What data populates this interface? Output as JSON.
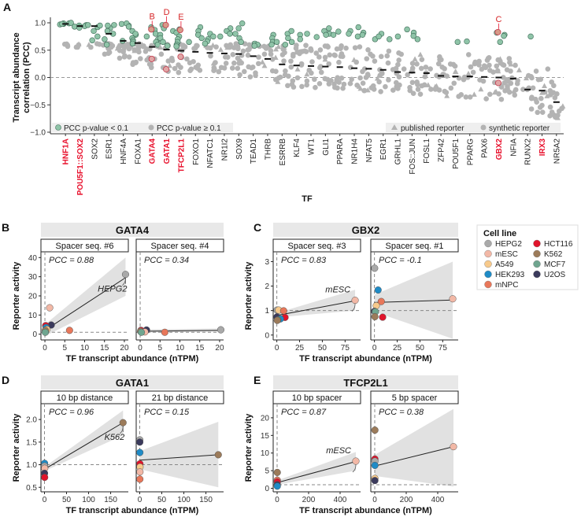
{
  "figure": {
    "panels": [
      "A",
      "B",
      "C",
      "D",
      "E"
    ]
  },
  "colors": {
    "significant": "#8fc4a8",
    "nonsignificant": "#b3b3b3",
    "highlight_label": "#e8112d",
    "highlight_point": "#e08a8a",
    "strip_bg": "#e8e8e8",
    "ribbon": "#dcdcdc"
  },
  "cell_lines": [
    {
      "name": "HEPG2",
      "color": "#a9a9a9"
    },
    {
      "name": "mESC",
      "color": "#f2b8a6"
    },
    {
      "name": "A549",
      "color": "#f7c98b"
    },
    {
      "name": "HEK293",
      "color": "#1f8bc6"
    },
    {
      "name": "mNPC",
      "color": "#e8775a"
    },
    {
      "name": "HCT116",
      "color": "#e0142b"
    },
    {
      "name": "K562",
      "color": "#9c7b5a"
    },
    {
      "name": "MCF7",
      "color": "#6fa58f"
    },
    {
      "name": "U2OS",
      "color": "#3b3a5c"
    }
  ],
  "chart_data": [
    {
      "panel": "A",
      "type": "scatter",
      "subtype": "strip/beeswarm with median markers",
      "title": "",
      "xlabel": "TF",
      "ylabel": "Transcript abundance correlation (PCC)",
      "ylim": [
        -1.0,
        1.0
      ],
      "yticks": [
        "1.0",
        "0.5",
        "0.0",
        "-0.5",
        "-1.0"
      ],
      "reference_line": 0.0,
      "legend": {
        "left": [
          {
            "label": "PCC p-value  <  0.1",
            "shape": "circle",
            "color": "#8fc4a8"
          },
          {
            "label": "PCC p-value ≥ 0.1",
            "shape": "circle",
            "color": "#b3b3b3"
          }
        ],
        "right": [
          {
            "label": "published reporter",
            "shape": "triangle"
          },
          {
            "label": "synthetic reporter",
            "shape": "circle"
          }
        ],
        "placement": "bottom"
      },
      "categories": [
        "HNF1A",
        "POU5F1::SOX2",
        "SOX2",
        "ESR1",
        "HNF4A",
        "FOXA1",
        "GATA4",
        "GATA1",
        "TFCP2L1",
        "FOXO1",
        "NFATC1",
        "NR1I2",
        "SOX9",
        "TEAD1",
        "THRB",
        "ESRRB",
        "KLF4",
        "WT1",
        "GLI1",
        "PPARA",
        "NR1H4",
        "NFAT5",
        "EGR1",
        "GRHL1",
        "FOS::JUN",
        "FOSL1",
        "ZFP42",
        "POU5F1",
        "PPARG",
        "PAX6",
        "GBX2",
        "NFIA",
        "RUNX2",
        "IRX3",
        "NR5A2"
      ],
      "highlighted_categories": [
        "HNF1A",
        "POU5F1::SOX2",
        "GATA4",
        "GATA1",
        "TFCP2L1",
        "GBX2",
        "IRX3"
      ],
      "medians": [
        0.98,
        0.94,
        0.94,
        0.8,
        0.67,
        0.63,
        0.56,
        0.51,
        0.49,
        0.47,
        0.45,
        0.44,
        0.43,
        0.39,
        0.34,
        0.24,
        0.22,
        0.21,
        0.2,
        0.19,
        0.17,
        0.16,
        0.14,
        0.1,
        0.09,
        0.08,
        0.03,
        0.02,
        0.02,
        0.01,
        0.0,
        -0.02,
        -0.22,
        -0.24,
        -0.45
      ],
      "sig_points": [
        [
          0.99,
          0.98,
          0.99,
          0.97,
          1.0,
          0.98
        ],
        [
          0.95,
          0.93,
          0.96,
          0.91,
          0.94
        ],
        [
          0.96,
          0.92,
          0.85,
          0.75,
          0.68,
          0.95
        ],
        [
          0.96,
          0.9,
          0.85,
          0.8,
          0.7,
          0.6,
          0.95
        ],
        [
          0.98,
          0.95,
          0.99,
          0.93,
          0.67
        ],
        [
          0.85,
          0.78,
          0.72,
          0.68,
          0.65,
          0.8,
          0.62
        ],
        [
          0.92,
          0.87,
          0.8,
          0.75,
          0.7,
          0.65,
          0.6
        ],
        [
          0.96,
          0.9,
          0.85,
          0.78,
          0.72,
          0.65,
          0.58
        ],
        [
          0.88,
          0.82,
          0.75,
          0.7,
          0.65,
          0.6,
          0.57
        ],
        [
          0.92,
          0.85,
          0.78,
          0.72,
          0.65
        ],
        [
          0.8,
          0.75,
          0.7,
          0.66,
          0.62
        ],
        [
          0.9,
          0.85,
          0.8,
          0.75
        ],
        [
          0.99,
          0.9,
          0.8,
          0.72,
          0.65
        ],
        [
          0.62,
          0.6,
          0.58
        ],
        [
          0.78,
          0.72,
          0.65,
          0.6
        ],
        [
          0.8,
          0.72,
          0.65,
          0.6
        ],
        [
          0.85,
          0.78,
          0.7,
          0.65
        ],
        [
          0.8,
          0.74
        ],
        [
          0.9,
          0.85,
          0.8,
          0.78
        ],
        [
          0.84,
          0.78
        ],
        [
          0.92,
          0.85,
          0.8,
          0.75
        ],
        [
          0.82,
          0.78,
          0.7
        ],
        [
          0.8,
          0.75,
          0.7
        ],
        [
          0.75
        ],
        [
          0.88,
          0.82,
          0.76,
          0.7
        ],
        [],
        [],
        [
          0.65
        ],
        [
          0.66
        ],
        [],
        [
          0.82,
          0.78,
          0.76,
          0.65
        ],
        [],
        [
          0.75
        ],
        [],
        []
      ],
      "callouts": [
        {
          "label": "B",
          "category": "GATA4",
          "pcc_points": [
            0.88,
            0.34
          ]
        },
        {
          "label": "D",
          "category": "GATA1",
          "pcc_points": [
            0.96,
            0.15
          ]
        },
        {
          "label": "E",
          "category": "TFCP2L1",
          "pcc_points": [
            0.87,
            0.38
          ]
        },
        {
          "label": "C",
          "category": "GBX2",
          "pcc_points": [
            0.83,
            -0.1
          ]
        }
      ]
    },
    {
      "panel": "B",
      "type": "scatter",
      "title": "GATA4",
      "xlabel": "TF transcript abundance (nTPM)",
      "ylabel": "Reporter activity",
      "xlim": [
        -1,
        21
      ],
      "ylim": [
        -3,
        43
      ],
      "xticks": [
        "0",
        "5",
        "10",
        "15",
        "20"
      ],
      "yticks": [
        "0",
        "10",
        "20",
        "30",
        "40"
      ],
      "reference_y": 1,
      "facets": [
        {
          "title": "Spacer seq. #6",
          "pcc_label": "PCC = 0.88",
          "annotation": {
            "label": "HEPG2",
            "cell": "HEPG2"
          },
          "fit": {
            "x": [
              0,
              20.3
            ],
            "y": [
              2.0,
              29.5
            ],
            "band_low": [
              -1,
              20
            ],
            "band_high": [
              5,
              40
            ]
          },
          "points": [
            {
              "cell": "HEPG2",
              "x": 20.3,
              "y": 31.2
            },
            {
              "cell": "mESC",
              "x": 1.2,
              "y": 13.8
            },
            {
              "cell": "mNPC",
              "x": 6.2,
              "y": 2.0
            },
            {
              "cell": "U2OS",
              "x": 1.6,
              "y": 4.8
            },
            {
              "cell": "HCT116",
              "x": 0.2,
              "y": 4.5
            },
            {
              "cell": "HEK293",
              "x": 0.3,
              "y": 3.5
            },
            {
              "cell": "A549",
              "x": 0.5,
              "y": 2.5
            },
            {
              "cell": "K562",
              "x": 0.1,
              "y": 2.0
            },
            {
              "cell": "MCF7",
              "x": 0.1,
              "y": 1.0
            }
          ]
        },
        {
          "title": "Spacer seq. #4",
          "pcc_label": "PCC = 0.34",
          "annotation": null,
          "fit": {
            "x": [
              0,
              20.3
            ],
            "y": [
              1.5,
              2.0
            ],
            "band_low": [
              0.8,
              1.5
            ],
            "band_high": [
              2.5,
              3.0
            ]
          },
          "points": [
            {
              "cell": "HEPG2",
              "x": 20.3,
              "y": 2.3
            },
            {
              "cell": "mNPC",
              "x": 6.2,
              "y": 1.0
            },
            {
              "cell": "U2OS",
              "x": 1.6,
              "y": 2.2
            },
            {
              "cell": "HCT116",
              "x": 0.2,
              "y": 2.0
            },
            {
              "cell": "mESC",
              "x": 1.2,
              "y": 1.2
            },
            {
              "cell": "K562",
              "x": 0.1,
              "y": 1.5
            },
            {
              "cell": "MCF7",
              "x": 0.3,
              "y": 1.0
            }
          ]
        }
      ]
    },
    {
      "panel": "C",
      "type": "scatter",
      "title": "GBX2",
      "xlabel": "TF transcript abundance (nTPM)",
      "ylabel": "Reporter activity",
      "xlim": [
        -4,
        92
      ],
      "ylim": [
        -0.2,
        3.4
      ],
      "xticks": [
        "0",
        "25",
        "50",
        "75"
      ],
      "yticks": [
        "0",
        "1",
        "2",
        "3"
      ],
      "reference_y": 1,
      "facets": [
        {
          "title": "Spacer seq. #3",
          "pcc_label": "PCC = 0.83",
          "annotation": {
            "label": "mESC",
            "cell": "mESC"
          },
          "fit": {
            "x": [
              0,
              86
            ],
            "y": [
              0.8,
              1.4
            ],
            "band_low": [
              0.72,
              1.0
            ],
            "band_high": [
              0.9,
              1.85
            ]
          },
          "points": [
            {
              "cell": "mESC",
              "x": 86,
              "y": 1.42
            },
            {
              "cell": "HEPG2",
              "x": 0.2,
              "y": 1.02
            },
            {
              "cell": "A549",
              "x": 2,
              "y": 1.02
            },
            {
              "cell": "mNPC",
              "x": 7.5,
              "y": 0.99
            },
            {
              "cell": "U2OS",
              "x": 0.1,
              "y": 0.74
            },
            {
              "cell": "HCT116",
              "x": 9,
              "y": 0.72
            },
            {
              "cell": "HEK293",
              "x": 4,
              "y": 0.66
            },
            {
              "cell": "MCF7",
              "x": 1,
              "y": 0.62
            },
            {
              "cell": "K562",
              "x": 0.5,
              "y": 0.6
            }
          ]
        },
        {
          "title": "Spacer seq. #1",
          "pcc_label": "PCC = -0.1",
          "annotation": null,
          "fit": {
            "x": [
              0,
              86
            ],
            "y": [
              1.33,
              1.43
            ],
            "band_low": [
              0.95,
              -0.15
            ],
            "band_high": [
              1.65,
              3.0
            ]
          },
          "points": [
            {
              "cell": "HEPG2",
              "x": 0.2,
              "y": 2.73
            },
            {
              "cell": "HEK293",
              "x": 4,
              "y": 1.84
            },
            {
              "cell": "mESC",
              "x": 86,
              "y": 1.48
            },
            {
              "cell": "mNPC",
              "x": 7.5,
              "y": 1.37
            },
            {
              "cell": "A549",
              "x": 2,
              "y": 1.2
            },
            {
              "cell": "U2OS",
              "x": 0.1,
              "y": 0.97
            },
            {
              "cell": "MCF7",
              "x": 1,
              "y": 0.95
            },
            {
              "cell": "K562",
              "x": 0.5,
              "y": 0.75
            },
            {
              "cell": "HCT116",
              "x": 9,
              "y": 0.73
            }
          ]
        }
      ]
    },
    {
      "panel": "D",
      "type": "scatter",
      "title": "GATA1",
      "xlabel": "TF transcript abundance (nTPM)",
      "ylabel": "Reporter activity",
      "xlim": [
        -8,
        190
      ],
      "ylim": [
        0.4,
        2.35
      ],
      "xticks": [
        "0",
        "50",
        "100",
        "150"
      ],
      "yticks": [
        "0.5",
        "1.0",
        "1.5",
        "2.0"
      ],
      "reference_y": 1,
      "facets": [
        {
          "title": "10 bp distance",
          "pcc_label": "PCC = 0.96",
          "annotation": {
            "label": "K562",
            "cell": "K562"
          },
          "fit": {
            "x": [
              0,
              178
            ],
            "y": [
              0.9,
              1.93
            ],
            "band_low": [
              0.86,
              1.65
            ],
            "band_high": [
              0.95,
              2.2
            ]
          },
          "points": [
            {
              "cell": "K562",
              "x": 178,
              "y": 1.93
            },
            {
              "cell": "HEK293",
              "x": 0.3,
              "y": 1.03
            },
            {
              "cell": "HEPG2",
              "x": 0.2,
              "y": 0.97
            },
            {
              "cell": "mESC",
              "x": 0.5,
              "y": 0.92
            },
            {
              "cell": "U2OS",
              "x": 0.1,
              "y": 0.81
            },
            {
              "cell": "HCT116",
              "x": 0.4,
              "y": 0.72
            }
          ]
        },
        {
          "title": "21 bp distance",
          "pcc_label": "PCC = 0.15",
          "annotation": null,
          "fit": {
            "x": [
              0,
              178
            ],
            "y": [
              1.1,
              1.22
            ],
            "band_low": [
              0.9,
              0.5
            ],
            "band_high": [
              1.3,
              1.95
            ]
          },
          "points": [
            {
              "cell": "HEPG2",
              "x": 0.2,
              "y": 1.55
            },
            {
              "cell": "U2OS",
              "x": 0.1,
              "y": 1.5
            },
            {
              "cell": "HEK293",
              "x": 0.3,
              "y": 1.27
            },
            {
              "cell": "K562",
              "x": 178,
              "y": 1.22
            },
            {
              "cell": "HCT116",
              "x": 0.4,
              "y": 1.02
            },
            {
              "cell": "A549",
              "x": 0.6,
              "y": 0.95
            },
            {
              "cell": "mESC",
              "x": 0.5,
              "y": 0.84
            },
            {
              "cell": "mNPC",
              "x": 0.3,
              "y": 0.68
            }
          ]
        }
      ]
    },
    {
      "panel": "E",
      "type": "scatter",
      "title": "TFCP2L1",
      "xlabel": "TF transcript abundance (nTPM)",
      "ylabel": "Reporter activity",
      "xlim": [
        -25,
        530
      ],
      "ylim": [
        -1,
        24
      ],
      "xticks": [
        "0",
        "200",
        "400"
      ],
      "yticks": [
        "0",
        "5",
        "10",
        "15",
        "20"
      ],
      "reference_y": 1,
      "facets": [
        {
          "title": "10 bp spacer",
          "pcc_label": "PCC = 0.87",
          "annotation": {
            "label": "mESC",
            "cell": "mESC"
          },
          "fit": {
            "x": [
              0,
              500
            ],
            "y": [
              1.6,
              7.6
            ],
            "band_low": [
              1.0,
              5.0
            ],
            "band_high": [
              2.2,
              10.3
            ]
          },
          "points": [
            {
              "cell": "mESC",
              "x": 500,
              "y": 7.7
            },
            {
              "cell": "K562",
              "x": 1,
              "y": 4.5
            },
            {
              "cell": "mNPC",
              "x": 1,
              "y": 2.3
            },
            {
              "cell": "HCT116",
              "x": 1,
              "y": 1.8
            },
            {
              "cell": "U2OS",
              "x": 1,
              "y": 1.0
            },
            {
              "cell": "HEK293",
              "x": 1,
              "y": 0.6
            }
          ]
        },
        {
          "title": "5 bp spacer",
          "pcc_label": "PCC = 0.38",
          "annotation": null,
          "fit": {
            "x": [
              0,
              500
            ],
            "y": [
              6.3,
              11.8
            ],
            "band_low": [
              3.5,
              0.5
            ],
            "band_high": [
              9.5,
              22.5
            ]
          },
          "points": [
            {
              "cell": "K562",
              "x": 1,
              "y": 16.5
            },
            {
              "cell": "mESC",
              "x": 500,
              "y": 11.8
            },
            {
              "cell": "HCT116",
              "x": 1,
              "y": 8.3
            },
            {
              "cell": "HEPG2",
              "x": 1,
              "y": 7.7
            },
            {
              "cell": "HEK293",
              "x": 1,
              "y": 6.5
            },
            {
              "cell": "A549",
              "x": 1,
              "y": 2.8
            },
            {
              "cell": "U2OS",
              "x": 1,
              "y": 2.2
            }
          ]
        }
      ]
    }
  ],
  "legend_cell_line": {
    "title": "Cell line"
  }
}
